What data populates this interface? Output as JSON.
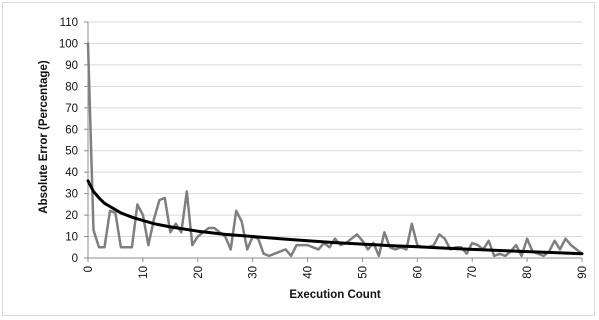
{
  "chart_data": {
    "type": "line",
    "title": "",
    "xlabel": "Execution Count",
    "ylabel": "Absolute Error (Percentage)",
    "xlim": [
      0,
      90
    ],
    "ylim": [
      0,
      110
    ],
    "x_ticks": [
      0,
      10,
      20,
      30,
      40,
      50,
      60,
      70,
      80,
      90
    ],
    "y_ticks": [
      0,
      10,
      20,
      30,
      40,
      50,
      60,
      70,
      80,
      90,
      100,
      110
    ],
    "grid": "horizontal",
    "legend": "none",
    "series": [
      {
        "style": "jagged",
        "color": "#7f7f7f",
        "x": [
          0,
          1,
          2,
          3,
          4,
          5,
          6,
          7,
          8,
          9,
          10,
          11,
          12,
          13,
          14,
          15,
          16,
          17,
          18,
          19,
          20,
          21,
          22,
          23,
          24,
          25,
          26,
          27,
          28,
          29,
          30,
          31,
          32,
          33,
          34,
          35,
          36,
          37,
          38,
          39,
          40,
          41,
          42,
          43,
          44,
          45,
          46,
          47,
          48,
          49,
          50,
          51,
          52,
          53,
          54,
          55,
          56,
          57,
          58,
          59,
          60,
          61,
          62,
          63,
          64,
          65,
          66,
          67,
          68,
          69,
          70,
          71,
          72,
          73,
          74,
          75,
          76,
          77,
          78,
          79,
          80,
          81,
          82,
          83,
          84,
          85,
          86,
          87,
          88,
          89,
          90
        ],
        "y": [
          100,
          13,
          5,
          5,
          22,
          21,
          5,
          5,
          5,
          25,
          20,
          6,
          18,
          27,
          28,
          12,
          16,
          12,
          31,
          6,
          10,
          12,
          14,
          14,
          12,
          10,
          4,
          22,
          17,
          4,
          10,
          9,
          2,
          1,
          2,
          3,
          4,
          1,
          6,
          6,
          6,
          5,
          4,
          7,
          5,
          9,
          6,
          7,
          9,
          11,
          8,
          4,
          7,
          1,
          12,
          5,
          4,
          5,
          4,
          16,
          6,
          5,
          5,
          6,
          11,
          9,
          4,
          5,
          5,
          2,
          7,
          6,
          4,
          8,
          1,
          2,
          1,
          3,
          6,
          1,
          9,
          3,
          2,
          1,
          3,
          8,
          4,
          9,
          6,
          4,
          2
        ]
      },
      {
        "style": "trend",
        "color": "#000000",
        "x": [
          0,
          1,
          2,
          3,
          4,
          5,
          6,
          8,
          10,
          12,
          15,
          20,
          25,
          30,
          35,
          40,
          45,
          50,
          55,
          60,
          65,
          70,
          75,
          80,
          85,
          90
        ],
        "y": [
          36,
          31,
          28,
          25.5,
          24,
          22.5,
          21,
          19,
          17.5,
          16,
          14.5,
          12.5,
          11,
          10,
          9,
          8,
          7.2,
          6.5,
          5.8,
          5.2,
          4.6,
          4,
          3.5,
          3,
          2.5,
          2
        ]
      }
    ]
  }
}
